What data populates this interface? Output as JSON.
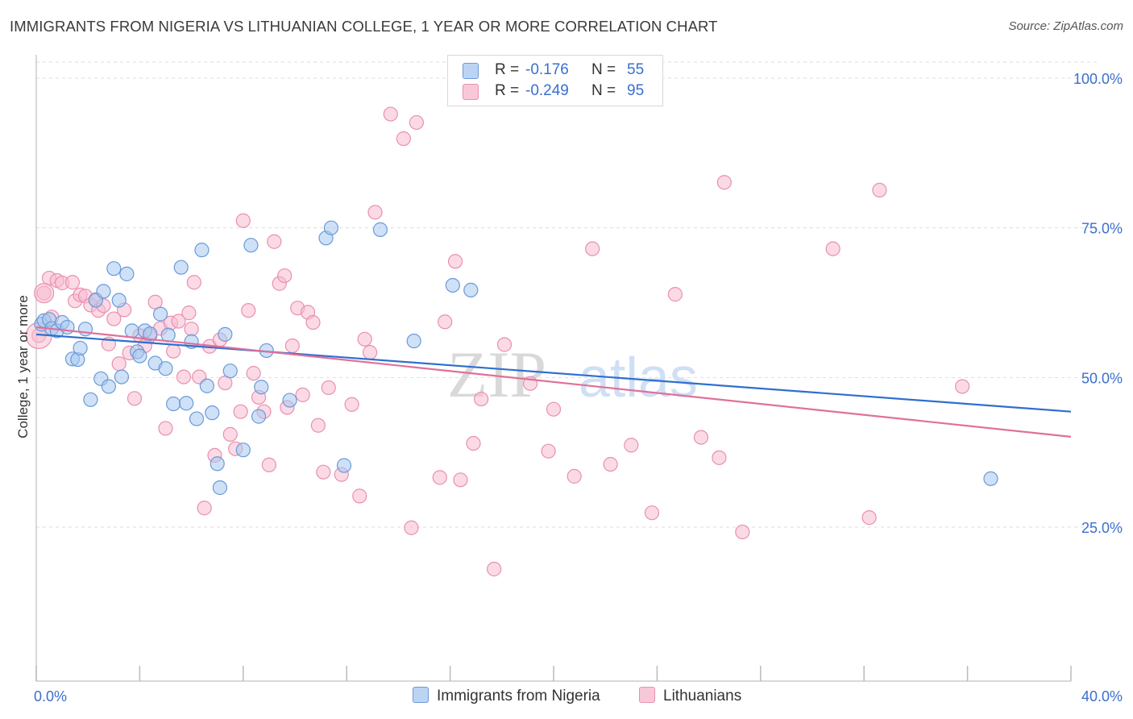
{
  "title": "IMMIGRANTS FROM NIGERIA VS LITHUANIAN COLLEGE, 1 YEAR OR MORE CORRELATION CHART",
  "source": "Source: ZipAtlas.com",
  "watermark": {
    "zip": "ZIP",
    "atlas": "atlas"
  },
  "legend": {
    "series1": {
      "r_label": "R =",
      "r_value": "-0.176",
      "n_label": "N =",
      "n_value": "55"
    },
    "series2": {
      "r_label": "R =",
      "r_value": "-0.249",
      "n_label": "N =",
      "n_value": "95"
    }
  },
  "bottom_legend": {
    "series1": "Immigrants from Nigeria",
    "series2": "Lithuanians"
  },
  "colors": {
    "blue_fill": "#a8c8f0",
    "blue_stroke": "#6a9ad8",
    "blue_line": "#2f6fcf",
    "pink_fill": "#f8bcd0",
    "pink_stroke": "#e890b0",
    "pink_line": "#e0709a",
    "tick_label": "#3a6fcf",
    "grid": "#dddddd"
  },
  "chart_data": {
    "type": "scatter",
    "title": "IMMIGRANTS FROM NIGERIA VS LITHUANIAN COLLEGE, 1 YEAR OR MORE CORRELATION CHART",
    "xlabel": "",
    "ylabel": "College, 1 year or more",
    "xlim": [
      0,
      40
    ],
    "ylim": [
      0,
      105
    ],
    "x_tick_labels": [
      "0.0%",
      "40.0%"
    ],
    "y_ticks": [
      25,
      50,
      75,
      100
    ],
    "y_tick_labels": [
      "25.0%",
      "50.0%",
      "75.0%",
      "100.0%"
    ],
    "grid": "horizontal dashed",
    "legend_placement": "top-center",
    "series": [
      {
        "name": "Immigrants from Nigeria",
        "color": "#a8c8f0",
        "trend": {
          "x": [
            0,
            40
          ],
          "y": [
            57.2,
            44.3
          ]
        },
        "points": [
          [
            0.2,
            58.9
          ],
          [
            0.3,
            59.5
          ],
          [
            0.5,
            59.7
          ],
          [
            0.6,
            58.2
          ],
          [
            0.8,
            57.8
          ],
          [
            1.0,
            59.2
          ],
          [
            1.2,
            58.4
          ],
          [
            1.4,
            53.1
          ],
          [
            1.6,
            53.0
          ],
          [
            1.7,
            54.9
          ],
          [
            1.9,
            58.1
          ],
          [
            2.1,
            46.3
          ],
          [
            2.3,
            62.9
          ],
          [
            2.5,
            49.8
          ],
          [
            2.6,
            64.4
          ],
          [
            2.8,
            48.5
          ],
          [
            3.0,
            68.2
          ],
          [
            3.2,
            62.9
          ],
          [
            3.3,
            50.1
          ],
          [
            3.5,
            67.3
          ],
          [
            3.7,
            57.8
          ],
          [
            3.9,
            54.3
          ],
          [
            4.0,
            53.6
          ],
          [
            4.2,
            57.8
          ],
          [
            4.4,
            57.3
          ],
          [
            4.6,
            52.4
          ],
          [
            4.8,
            60.6
          ],
          [
            5.0,
            51.5
          ],
          [
            5.1,
            57.1
          ],
          [
            5.3,
            45.6
          ],
          [
            5.6,
            68.4
          ],
          [
            5.8,
            45.7
          ],
          [
            6.0,
            56.0
          ],
          [
            6.2,
            43.1
          ],
          [
            6.4,
            71.3
          ],
          [
            6.6,
            48.6
          ],
          [
            6.8,
            44.1
          ],
          [
            7.0,
            35.6
          ],
          [
            7.1,
            31.6
          ],
          [
            7.3,
            57.2
          ],
          [
            7.5,
            51.1
          ],
          [
            8.0,
            37.9
          ],
          [
            8.3,
            72.1
          ],
          [
            8.7,
            48.4
          ],
          [
            8.9,
            54.5
          ],
          [
            9.8,
            46.2
          ],
          [
            11.2,
            73.3
          ],
          [
            11.4,
            75.0
          ],
          [
            11.9,
            35.3
          ],
          [
            13.3,
            74.7
          ],
          [
            14.6,
            56.1
          ],
          [
            16.1,
            65.4
          ],
          [
            16.8,
            64.6
          ],
          [
            36.9,
            33.1
          ],
          [
            8.6,
            43.5
          ]
        ]
      },
      {
        "name": "Lithuanians",
        "color": "#f8bcd0",
        "trend": {
          "x": [
            0,
            40
          ],
          "y": [
            58.4,
            40.1
          ]
        },
        "points": [
          [
            0.3,
            64.1
          ],
          [
            0.5,
            66.6
          ],
          [
            0.6,
            60.1
          ],
          [
            0.8,
            66.2
          ],
          [
            1.0,
            65.8
          ],
          [
            1.4,
            65.9
          ],
          [
            1.5,
            62.8
          ],
          [
            1.7,
            63.8
          ],
          [
            1.9,
            63.6
          ],
          [
            2.1,
            62.1
          ],
          [
            2.3,
            63.0
          ],
          [
            2.4,
            61.2
          ],
          [
            2.6,
            62.0
          ],
          [
            2.8,
            55.6
          ],
          [
            3.0,
            59.8
          ],
          [
            3.2,
            52.3
          ],
          [
            3.4,
            61.3
          ],
          [
            3.6,
            54.1
          ],
          [
            3.8,
            46.5
          ],
          [
            4.0,
            57.0
          ],
          [
            4.2,
            55.3
          ],
          [
            4.4,
            57.0
          ],
          [
            4.6,
            62.6
          ],
          [
            4.8,
            58.2
          ],
          [
            5.0,
            41.5
          ],
          [
            5.2,
            59.1
          ],
          [
            5.3,
            54.4
          ],
          [
            5.5,
            59.4
          ],
          [
            5.7,
            50.1
          ],
          [
            5.9,
            60.8
          ],
          [
            6.0,
            58.1
          ],
          [
            6.1,
            65.9
          ],
          [
            6.3,
            50.1
          ],
          [
            6.5,
            28.2
          ],
          [
            6.7,
            55.2
          ],
          [
            6.9,
            37.0
          ],
          [
            7.1,
            56.3
          ],
          [
            7.3,
            49.1
          ],
          [
            7.5,
            40.5
          ],
          [
            7.7,
            38.1
          ],
          [
            7.9,
            44.3
          ],
          [
            8.0,
            76.2
          ],
          [
            8.2,
            61.2
          ],
          [
            8.4,
            50.7
          ],
          [
            8.6,
            46.7
          ],
          [
            8.8,
            44.3
          ],
          [
            9.0,
            35.4
          ],
          [
            9.2,
            72.7
          ],
          [
            9.4,
            65.7
          ],
          [
            9.6,
            67.0
          ],
          [
            9.7,
            45.0
          ],
          [
            9.9,
            55.3
          ],
          [
            10.1,
            61.6
          ],
          [
            10.3,
            47.1
          ],
          [
            10.5,
            60.9
          ],
          [
            10.7,
            59.2
          ],
          [
            10.9,
            42.0
          ],
          [
            11.1,
            34.2
          ],
          [
            11.3,
            48.3
          ],
          [
            11.8,
            33.8
          ],
          [
            12.2,
            45.5
          ],
          [
            12.5,
            30.2
          ],
          [
            12.7,
            56.4
          ],
          [
            12.9,
            54.2
          ],
          [
            13.1,
            77.6
          ],
          [
            13.7,
            94.0
          ],
          [
            14.2,
            89.9
          ],
          [
            14.5,
            24.9
          ],
          [
            14.7,
            92.6
          ],
          [
            15.6,
            33.3
          ],
          [
            15.8,
            59.3
          ],
          [
            16.2,
            69.4
          ],
          [
            16.4,
            32.9
          ],
          [
            16.9,
            39.0
          ],
          [
            17.2,
            46.4
          ],
          [
            17.7,
            18.0
          ],
          [
            18.1,
            55.5
          ],
          [
            19.1,
            49.0
          ],
          [
            19.8,
            37.7
          ],
          [
            20.0,
            44.7
          ],
          [
            20.8,
            33.5
          ],
          [
            21.5,
            71.5
          ],
          [
            22.2,
            35.5
          ],
          [
            23.0,
            38.7
          ],
          [
            23.8,
            27.4
          ],
          [
            24.7,
            63.9
          ],
          [
            25.7,
            40.0
          ],
          [
            26.4,
            36.6
          ],
          [
            26.6,
            82.6
          ],
          [
            27.3,
            24.2
          ],
          [
            30.8,
            71.5
          ],
          [
            32.2,
            26.6
          ],
          [
            32.6,
            81.3
          ],
          [
            35.8,
            48.5
          ],
          [
            0.1,
            57.0
          ]
        ]
      }
    ]
  }
}
